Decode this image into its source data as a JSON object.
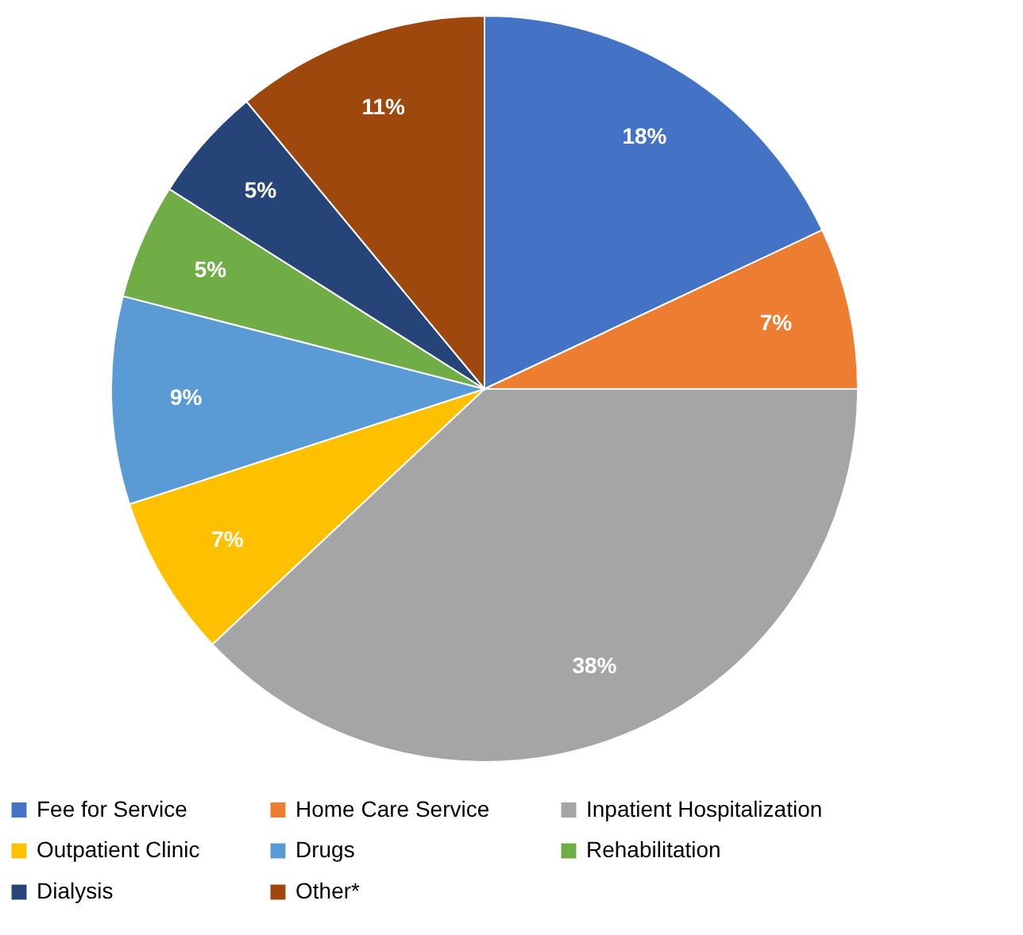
{
  "chart_data": {
    "type": "pie",
    "categories": [
      "Fee for Service",
      "Home Care Service",
      "Inpatient Hospitalization",
      "Outpatient Clinic",
      "Drugs",
      "Rehabilitation",
      "Dialysis",
      "Other*"
    ],
    "values": [
      18,
      7,
      38,
      7,
      9,
      5,
      5,
      11
    ],
    "value_labels": [
      "18%",
      "7%",
      "38%",
      "7%",
      "9%",
      "5%",
      "5%",
      "11%"
    ],
    "colors": [
      "#4472c4",
      "#ed7d31",
      "#a5a5a5",
      "#ffc000",
      "#5b9bd5",
      "#70ad47",
      "#264478",
      "#9e480e"
    ],
    "legend": "bottom"
  }
}
